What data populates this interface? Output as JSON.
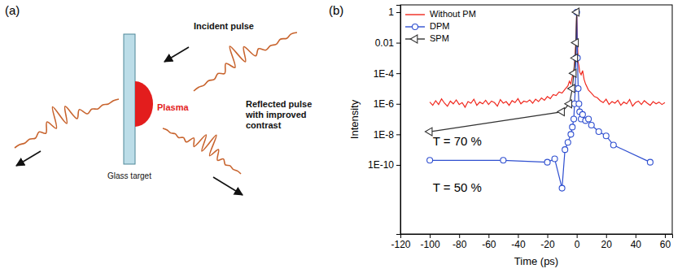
{
  "diagram": {
    "panel_label": "(a)",
    "incident_label": "Incident pulse",
    "plasma_label": "Plasma",
    "target_label": "Glass target",
    "reflected_label": "Reflected pulse with improved contrast"
  },
  "chart_data": {
    "type": "line",
    "panel_label": "(b)",
    "x_label": "Time (ps)",
    "y_label": "Intensity",
    "log": "y",
    "legend": "upper left",
    "xlim": [
      -120,
      65
    ],
    "xticks": [
      -120,
      -100,
      -80,
      -60,
      -40,
      -20,
      0,
      20,
      40,
      60
    ],
    "ylim": [
      3e-15,
      3
    ],
    "yticks": [
      1,
      0.01,
      {
        "value": 0.0001,
        "label": "1E-4"
      },
      {
        "value": 1e-06,
        "label": "1E-6"
      },
      {
        "value": 1e-08,
        "label": "1E-8"
      },
      {
        "value": 1e-10,
        "label": "1E-10"
      }
    ],
    "series": [
      {
        "name": "Without PM",
        "color": "#f0281e",
        "line_style": "solid",
        "x": [
          -100,
          -98,
          -96,
          -94,
          -92,
          -90,
          -88,
          -86,
          -84,
          -82,
          -80,
          -78,
          -76,
          -74,
          -72,
          -70,
          -68,
          -66,
          -64,
          -62,
          -60,
          -58,
          -56,
          -54,
          -52,
          -50,
          -48,
          -46,
          -44,
          -42,
          -40,
          -38,
          -36,
          -34,
          -32,
          -30,
          -28,
          -26,
          -24,
          -22,
          -20,
          -18,
          -16,
          -14,
          -12,
          -10,
          -8,
          -6,
          -5,
          -4,
          -3,
          -2,
          -1.5,
          -1,
          -0.5,
          0,
          0.5,
          1,
          1.5,
          2,
          3,
          4,
          5,
          6,
          8,
          10,
          12,
          14,
          16,
          18,
          20,
          22,
          24,
          26,
          28,
          30,
          32,
          34,
          36,
          38,
          40,
          42,
          44,
          46,
          48,
          50,
          52,
          54,
          56,
          58,
          60
        ],
        "values": [
          1.3e-06,
          8e-07,
          1.6e-06,
          9e-07,
          2.1e-06,
          1.1e-06,
          7e-07,
          1.5e-06,
          1e-06,
          1.8e-06,
          9e-07,
          1.2e-06,
          6e-07,
          1.4e-06,
          1.1e-06,
          2e-06,
          8e-07,
          1.3e-06,
          1e-06,
          1.7e-06,
          9e-07,
          1.5e-06,
          1.2e-06,
          7e-07,
          1.9e-06,
          1.1e-06,
          1.4e-06,
          8e-07,
          1.6e-06,
          1.2e-06,
          2.2e-06,
          1e-06,
          1.5e-06,
          1.3e-06,
          1.8e-06,
          1.1e-06,
          2e-06,
          1.4e-06,
          2.4e-06,
          1.7e-06,
          3e-06,
          2.2e-06,
          4e-06,
          3.5e-06,
          6e-06,
          5e-06,
          9e-06,
          1.5e-05,
          3e-05,
          2e-05,
          6e-05,
          0.00015,
          0.0004,
          0.002,
          0.02,
          1,
          0.01,
          0.0005,
          0.0003,
          0.00012,
          8e-05,
          0.00015,
          4e-05,
          2e-05,
          8e-06,
          5e-06,
          3e-06,
          2.5e-06,
          1.6e-06,
          1.2e-06,
          2e-06,
          9e-07,
          1.4e-06,
          1.1e-06,
          1.7e-06,
          8e-07,
          1.3e-06,
          1e-06,
          1.9e-06,
          7e-07,
          1.2e-06,
          1.5e-06,
          9e-07,
          1.6e-06,
          1.1e-06,
          8e-07,
          1.4e-06,
          1e-06,
          1.3e-06,
          9e-07,
          1.2e-06
        ]
      },
      {
        "name": "DPM",
        "color": "#2f4fd0",
        "marker": "circle",
        "line_style": "solid",
        "x": [
          -100,
          -50,
          -20,
          -15,
          -10,
          -8,
          -6,
          -4,
          -3,
          -2,
          -1.5,
          -1,
          -0.5,
          0,
          0.5,
          1,
          1.5,
          2,
          3,
          4,
          6,
          8,
          10,
          15,
          20,
          25,
          50
        ],
        "values": [
          2e-10,
          2e-10,
          1.5e-10,
          2.5e-10,
          3e-12,
          1e-09,
          3e-09,
          1e-08,
          3e-08,
          1e-07,
          1e-06,
          1e-05,
          0.001,
          1,
          0.001,
          1e-05,
          1e-06,
          3e-07,
          1e-07,
          2e-07,
          8e-08,
          1e-07,
          4e-08,
          1.5e-08,
          8e-09,
          2e-09,
          1.5e-10
        ]
      },
      {
        "name": "SPM",
        "color": "#333333",
        "marker": "triangle-left",
        "line_style": "solid",
        "x": [
          -100,
          -10,
          -5,
          -3,
          -2,
          -1,
          -0.5,
          0
        ],
        "values": [
          1.5e-08,
          3e-07,
          1e-06,
          1e-05,
          0.0001,
          0.001,
          0.01,
          1
        ]
      }
    ],
    "annotations": [
      {
        "text": "T = 70 %",
        "x": -98,
        "y": 3e-09
      },
      {
        "text": "T = 50 %",
        "x": -98,
        "y": 3e-12
      }
    ]
  }
}
